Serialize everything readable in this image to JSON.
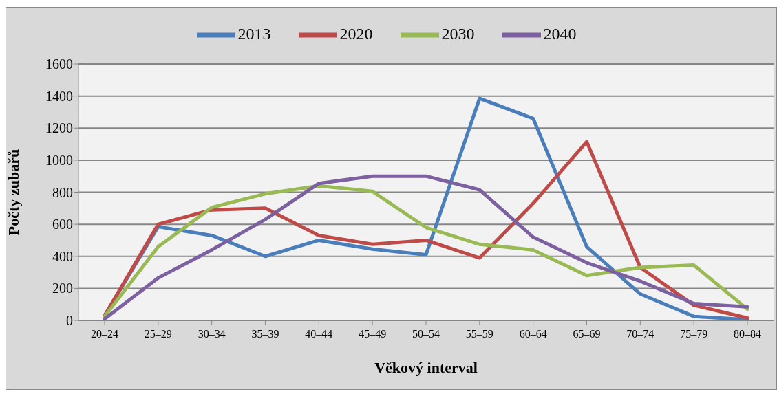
{
  "chart_data": {
    "type": "line",
    "xlabel": "Věkový interval",
    "ylabel": "Počty zubařů",
    "categories": [
      "20–24",
      "25–29",
      "30–34",
      "35–39",
      "40–44",
      "45–49",
      "50–54",
      "55–59",
      "60–64",
      "65–69",
      "70–74",
      "75–79",
      "80–84"
    ],
    "series": [
      {
        "name": "2013",
        "color": "#4a7ebb",
        "values": [
          30,
          585,
          530,
          400,
          500,
          445,
          410,
          1385,
          1260,
          460,
          165,
          25,
          5
        ]
      },
      {
        "name": "2020",
        "color": "#be4b48",
        "values": [
          30,
          600,
          690,
          700,
          530,
          475,
          500,
          390,
          730,
          1115,
          330,
          95,
          15
        ]
      },
      {
        "name": "2030",
        "color": "#98b954",
        "values": [
          25,
          460,
          705,
          790,
          840,
          805,
          580,
          475,
          440,
          280,
          330,
          345,
          70
        ]
      },
      {
        "name": "2040",
        "color": "#7d60a0",
        "values": [
          10,
          265,
          440,
          630,
          855,
          900,
          900,
          815,
          520,
          360,
          245,
          105,
          85
        ]
      }
    ],
    "ylim": [
      0,
      1600
    ],
    "yticks": [
      0,
      200,
      400,
      600,
      800,
      1000,
      1200,
      1400,
      1600
    ],
    "grid": "y",
    "legend": "top",
    "marker": "none",
    "line_style": "solid"
  }
}
